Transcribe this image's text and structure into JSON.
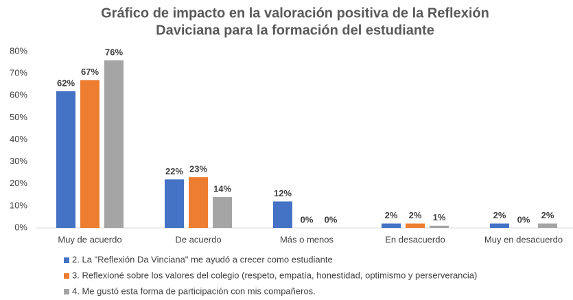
{
  "chart_data": {
    "type": "bar",
    "title": [
      "Gráfico de impacto en la valoración positiva de la Reflexión",
      "Daviciana para la formación del estudiante"
    ],
    "categories": [
      "Muy de acuerdo",
      "De acuerdo",
      "Más o menos",
      "En desacuerdo",
      "Muy en desacuerdo"
    ],
    "series": [
      {
        "name": "2. La \"Reflexión Da Vinciana\" me ayudó a crecer como estudiante",
        "color": "#4472c4",
        "values": [
          62,
          22,
          12,
          2,
          2
        ],
        "value_labels": [
          "62%",
          "22%",
          "12%",
          "2%",
          "2%"
        ]
      },
      {
        "name": "3. Reflexioné sobre los valores del colegio (respeto, empatía, honestidad, optimismo y perserverancia)",
        "color": "#ed7d31",
        "values": [
          67,
          23,
          0,
          2,
          0
        ],
        "value_labels": [
          "67%",
          "23%",
          "0%",
          "2%",
          "0%"
        ]
      },
      {
        "name": "4. Me gustó esta forma de participación con mis compañeros.",
        "color": "#a5a5a5",
        "values": [
          76,
          14,
          0,
          1,
          2
        ],
        "value_labels": [
          "76%",
          "14%",
          "0%",
          "1%",
          "2%"
        ]
      }
    ],
    "ylim": [
      0,
      80
    ],
    "yticks": [
      {
        "value": 0,
        "label": "0%"
      },
      {
        "value": 10,
        "label": "10%"
      },
      {
        "value": 20,
        "label": "20%"
      },
      {
        "value": 30,
        "label": "30%"
      },
      {
        "value": 40,
        "label": "40%"
      },
      {
        "value": 50,
        "label": "50%"
      },
      {
        "value": 60,
        "label": "60%"
      },
      {
        "value": 70,
        "label": "70%"
      },
      {
        "value": 80,
        "label": "80%"
      }
    ],
    "grid": false,
    "legend": "bottom"
  }
}
